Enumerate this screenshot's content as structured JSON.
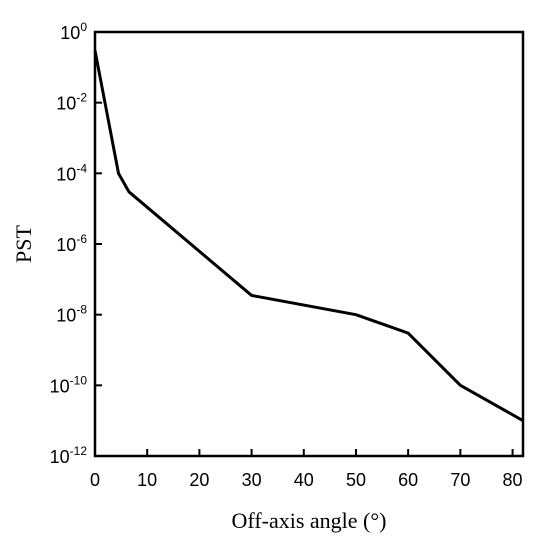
{
  "chart_data": {
    "type": "line",
    "title": "",
    "xlabel": "Off-axis angle (°)",
    "ylabel": "PST",
    "xlim": [
      0,
      82
    ],
    "ylim": [
      1e-12,
      1
    ],
    "y_scale": "log",
    "grid": false,
    "x_ticks": [
      {
        "value": 0,
        "label": "0"
      },
      {
        "value": 10,
        "label": "10"
      },
      {
        "value": 20,
        "label": "20"
      },
      {
        "value": 30,
        "label": "30"
      },
      {
        "value": 40,
        "label": "40"
      },
      {
        "value": 50,
        "label": "50"
      },
      {
        "value": 60,
        "label": "60"
      },
      {
        "value": 70,
        "label": "70"
      },
      {
        "value": 80,
        "label": "80"
      }
    ],
    "y_ticks": [
      {
        "value": 1,
        "base": "10",
        "exp": "0"
      },
      {
        "value": 0.01,
        "base": "10",
        "exp": "-2"
      },
      {
        "value": 0.0001,
        "base": "10",
        "exp": "-4"
      },
      {
        "value": 1e-06,
        "base": "10",
        "exp": "-6"
      },
      {
        "value": 1e-08,
        "base": "10",
        "exp": "-8"
      },
      {
        "value": 1e-10,
        "base": "10",
        "exp": "-10"
      },
      {
        "value": 1e-12,
        "base": "10",
        "exp": "-12"
      }
    ],
    "series": [
      {
        "color": "#000000",
        "x": [
          0,
          4.5,
          6.5,
          30,
          50,
          60,
          70,
          82
        ],
        "y": [
          0.3,
          0.0001,
          3e-05,
          3.5e-08,
          1e-08,
          3e-09,
          1e-10,
          1e-11
        ]
      }
    ]
  }
}
